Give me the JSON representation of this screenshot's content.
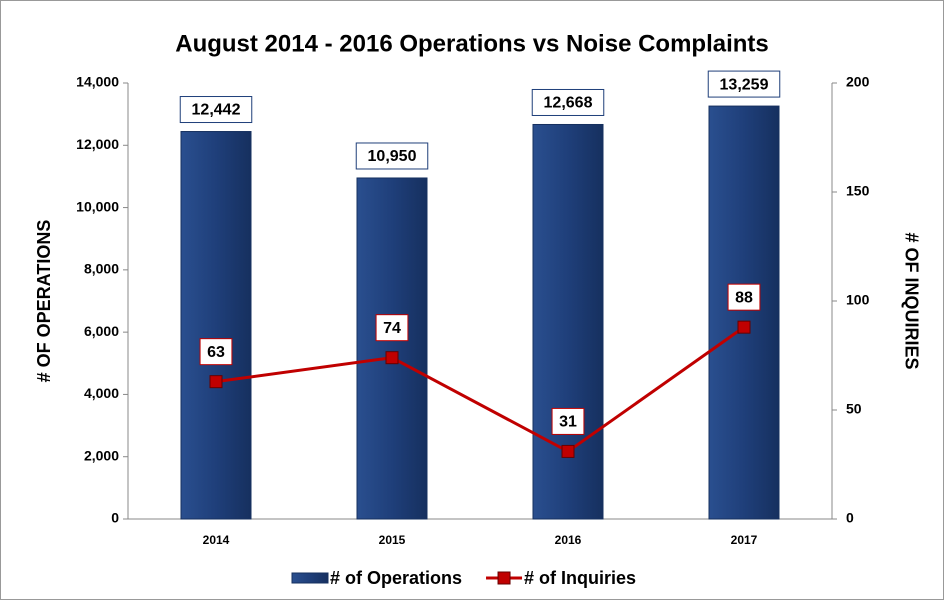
{
  "chart_data": {
    "type": "bar",
    "title": "August 2014 - 2016 Operations vs Noise Complaints",
    "categories": [
      "2014",
      "2015",
      "2016",
      "2017"
    ],
    "y_label": "# OF OPERATIONS",
    "y2_label": "# OF INQUIRIES",
    "series": [
      {
        "name": "# of Operations",
        "type": "bar",
        "color": "#1f3f7a",
        "values": [
          12442,
          10950,
          12668,
          13259
        ],
        "value_labels": [
          "12,442",
          "10,950",
          "12,668",
          "13,259"
        ]
      },
      {
        "name": "# of Inquiries",
        "type": "line",
        "color": "#c00000",
        "axis": "y2",
        "values": [
          63,
          74,
          31,
          88
        ]
      }
    ],
    "ylim": [
      0,
      14000
    ],
    "yticks": [
      0,
      {
        "value": 2000,
        "label": "2,000"
      },
      {
        "value": 4000,
        "label": "4,000"
      },
      {
        "value": 6000,
        "label": "6,000"
      },
      {
        "value": 8000,
        "label": "8,000"
      },
      {
        "value": 10000,
        "label": "10,000"
      },
      {
        "value": 12000,
        "label": "12,000"
      },
      {
        "value": 14000,
        "label": "14,000"
      }
    ],
    "y2lim": [
      0,
      200
    ],
    "y2ticks": [
      0,
      50,
      100,
      150,
      200
    ],
    "legend": "bottom"
  }
}
